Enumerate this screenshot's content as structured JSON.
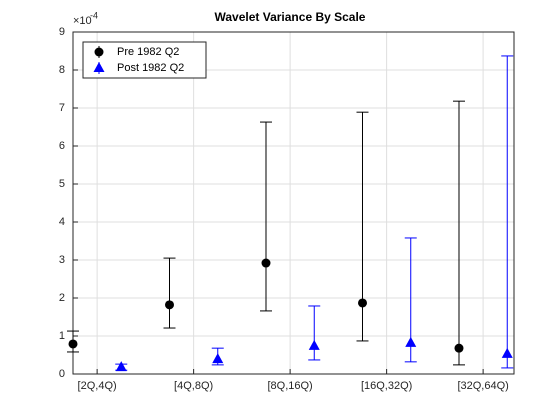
{
  "chart_data": {
    "type": "errorbar",
    "title": "Wavelet Variance By Scale",
    "exponent_base": "×10",
    "exponent": "-4",
    "xlim": [
      0.75,
      5.32
    ],
    "xticks": [
      {
        "value": 1,
        "label": "[2Q,4Q)"
      },
      {
        "value": 2,
        "label": "[4Q,8Q)"
      },
      {
        "value": 3,
        "label": "[8Q,16Q)"
      },
      {
        "value": 4,
        "label": "[16Q,32Q)"
      },
      {
        "value": 5,
        "label": "[32Q,64Q)"
      }
    ],
    "ylim": [
      0,
      9
    ],
    "yticks": [
      0,
      1,
      2,
      3,
      4,
      5,
      6,
      7,
      8,
      9
    ],
    "grid": true,
    "legend": "upper left",
    "series": [
      {
        "name": "Pre 1982 Q2",
        "color": "#000000",
        "marker": "circle",
        "x": [
          0.75,
          1.75,
          2.75,
          3.75,
          4.75
        ],
        "values": [
          0.79,
          1.82,
          2.92,
          1.87,
          0.68
        ],
        "lower": [
          0.58,
          1.21,
          1.66,
          0.87,
          0.24
        ],
        "upper": [
          1.13,
          3.05,
          6.63,
          6.89,
          7.18
        ]
      },
      {
        "name": "Post 1982 Q2",
        "color": "#0000ff",
        "marker": "triangle",
        "x": [
          1.25,
          2.25,
          3.25,
          4.25,
          5.25
        ],
        "values": [
          0.18,
          0.39,
          0.74,
          0.82,
          0.53
        ],
        "lower": [
          0.1,
          0.24,
          0.37,
          0.32,
          0.16
        ],
        "upper": [
          0.26,
          0.68,
          1.79,
          3.58,
          8.37
        ]
      }
    ]
  }
}
